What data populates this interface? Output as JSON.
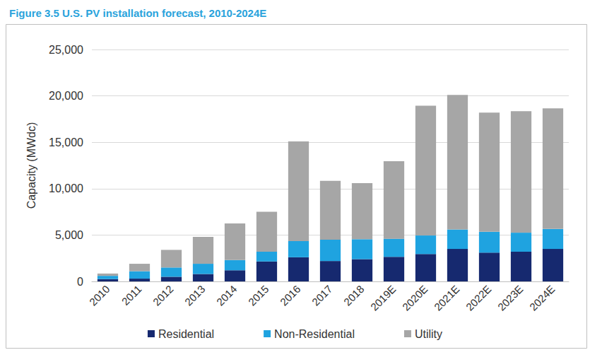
{
  "chart_data": {
    "type": "bar",
    "title": "Figure 3.5 U.S. PV installation forecast, 2010-2024E",
    "y_label": "Capacity (MWdc)",
    "categories": [
      "2010",
      "2011",
      "2012",
      "2013",
      "2014",
      "2015",
      "2016",
      "2017",
      "2018",
      "2019E",
      "2020E",
      "2021E",
      "2022E",
      "2023E",
      "2024E"
    ],
    "series": [
      {
        "name": "Residential",
        "color": "#16296f",
        "values": [
          250,
          300,
          500,
          800,
          1200,
          2150,
          2600,
          2200,
          2400,
          2650,
          2950,
          3500,
          3100,
          3200,
          3500
        ]
      },
      {
        "name": "Non-Residential",
        "color": "#1fa3e0",
        "values": [
          350,
          800,
          1000,
          1100,
          1100,
          1050,
          1750,
          2300,
          2150,
          1950,
          2000,
          2100,
          2250,
          2050,
          2150
        ]
      },
      {
        "name": "Utility",
        "color": "#a6a6a6",
        "values": [
          250,
          800,
          1900,
          2900,
          3950,
          4300,
          10750,
          6350,
          6050,
          8350,
          14000,
          14500,
          12850,
          13100,
          13000
        ]
      }
    ],
    "ylim": [
      0,
      25000
    ],
    "yticks": [
      0,
      {
        "value": 5000,
        "label": "5,000"
      },
      {
        "value": 10000,
        "label": "10,000"
      },
      {
        "value": 15000,
        "label": "15,000"
      },
      {
        "value": 20000,
        "label": "20,000"
      },
      {
        "value": 25000,
        "label": "25,000"
      }
    ],
    "stacked": true,
    "grid": true,
    "legend": "bottom"
  }
}
